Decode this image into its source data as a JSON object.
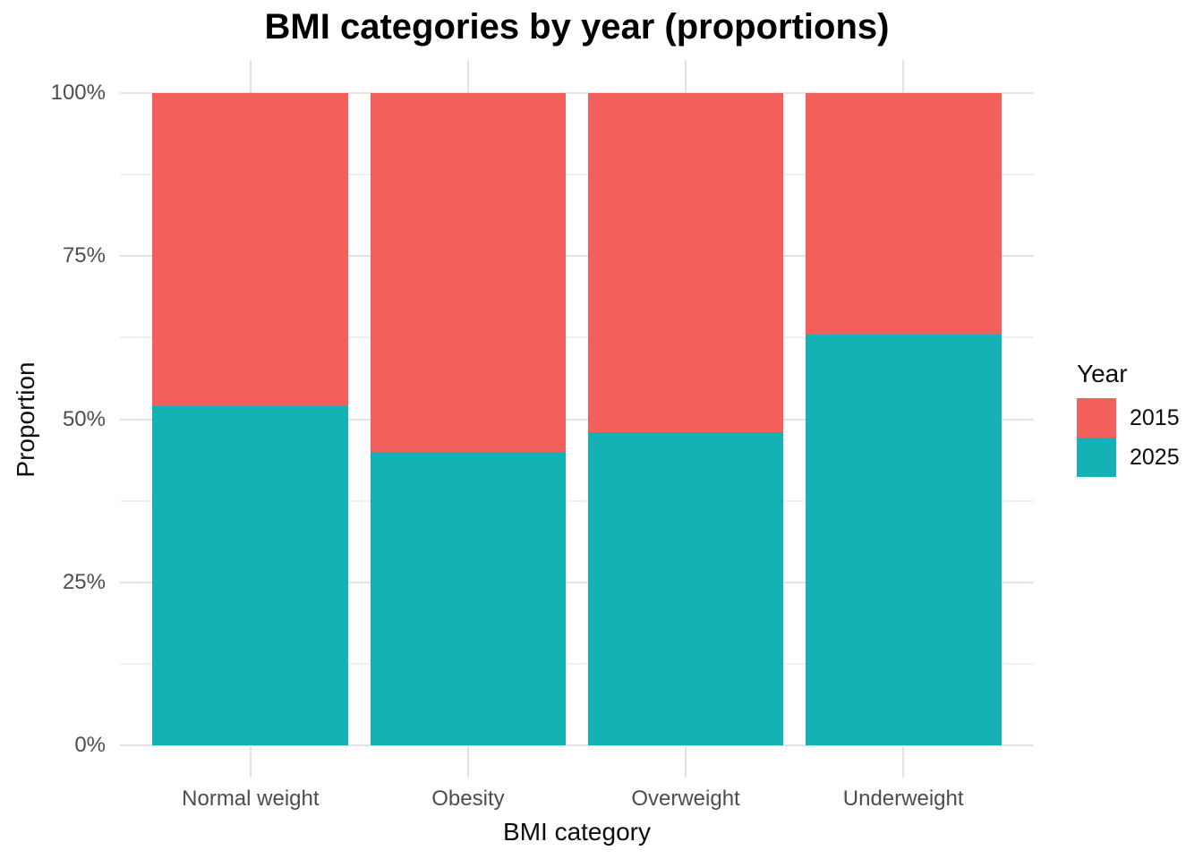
{
  "chart_data": {
    "type": "bar",
    "stacked": true,
    "normalized": true,
    "title": "BMI categories by year (proportions)",
    "xlabel": "BMI category",
    "ylabel": "Proportion",
    "categories": [
      "Normal weight",
      "Obesity",
      "Overweight",
      "Underweight"
    ],
    "series": [
      {
        "name": "2015",
        "color": "#F3605C",
        "values": [
          0.48,
          0.55,
          0.52,
          0.37
        ]
      },
      {
        "name": "2025",
        "color": "#14B2B5",
        "values": [
          0.52,
          0.45,
          0.48,
          0.63
        ]
      }
    ],
    "stack_order_bottom_to_top": [
      "2025",
      "2015"
    ],
    "ylim": [
      0,
      1
    ],
    "y_ticks": [
      {
        "label": "0%",
        "value": 0
      },
      {
        "label": "25%",
        "value": 0.25
      },
      {
        "label": "50%",
        "value": 0.5
      },
      {
        "label": "75%",
        "value": 0.75
      },
      {
        "label": "100%",
        "value": 1
      }
    ],
    "y_minor_ticks": [
      0.125,
      0.375,
      0.625,
      0.875
    ],
    "grid": true,
    "legend": {
      "title": "Year",
      "position": "right",
      "entries": [
        {
          "label": "2015",
          "color": "#F3605C"
        },
        {
          "label": "2025",
          "color": "#14B2B5"
        }
      ]
    },
    "colors": {
      "background": "#FFFFFF",
      "grid_major": "#E3E3E3",
      "grid_minor": "#F0F0F0",
      "axis_text": "#4D4D4D",
      "title_text": "#000000"
    }
  }
}
